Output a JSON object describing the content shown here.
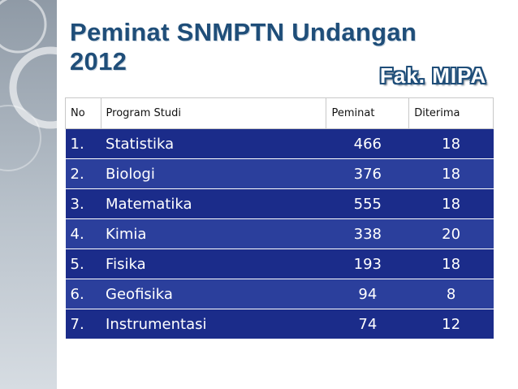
{
  "title": "Peminat SNMPTN Undangan 2012",
  "subtitle": "Fak. MIPA",
  "table": {
    "headers": [
      "No",
      "Program Studi",
      "Peminat",
      "Diterima"
    ],
    "rows": [
      {
        "no": "1.",
        "program": "Statistika",
        "peminat": "466",
        "diterima": "18"
      },
      {
        "no": "2.",
        "program": "Biologi",
        "peminat": "376",
        "diterima": "18"
      },
      {
        "no": "3.",
        "program": "Matematika",
        "peminat": "555",
        "diterima": "18"
      },
      {
        "no": "4.",
        "program": "Kimia",
        "peminat": "338",
        "diterima": "20"
      },
      {
        "no": "5.",
        "program": "Fisika",
        "peminat": "193",
        "diterima": "18"
      },
      {
        "no": "6.",
        "program": "Geofisika",
        "peminat": "94",
        "diterima": "8"
      },
      {
        "no": "7.",
        "program": "Instrumentasi",
        "peminat": "74",
        "diterima": "12"
      }
    ]
  },
  "colors": {
    "title": "#1f4e79",
    "row_dark": "#1b2c8a",
    "row_light": "#2b3f9c"
  }
}
